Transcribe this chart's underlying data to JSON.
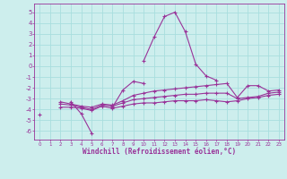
{
  "xlabel": "Windchill (Refroidissement éolien,°C)",
  "background_color": "#cdeeed",
  "grid_color": "#a8dede",
  "line_color": "#993399",
  "x_ticks": [
    0,
    1,
    2,
    3,
    4,
    5,
    6,
    7,
    8,
    9,
    10,
    11,
    12,
    13,
    14,
    15,
    16,
    17,
    18,
    19,
    20,
    21,
    22,
    23
  ],
  "y_ticks": [
    -6,
    -5,
    -4,
    -3,
    -2,
    -1,
    0,
    1,
    2,
    3,
    4,
    5
  ],
  "ylim": [
    -6.8,
    5.8
  ],
  "xlim": [
    -0.5,
    23.5
  ],
  "series": [
    [
      null,
      null,
      null,
      null,
      null,
      null,
      null,
      null,
      null,
      null,
      0.5,
      2.7,
      4.6,
      5.0,
      3.2,
      0.2,
      -0.9,
      -1.3,
      null,
      null,
      null,
      null,
      null,
      null
    ],
    [
      -4.5,
      null,
      null,
      -3.3,
      -4.4,
      -6.2,
      null,
      -3.8,
      -2.2,
      -1.4,
      -1.6,
      null,
      null,
      null,
      null,
      null,
      null,
      null,
      null,
      null,
      null,
      null,
      null,
      null
    ],
    [
      null,
      null,
      -3.3,
      -3.5,
      -3.7,
      -3.8,
      -3.5,
      -3.6,
      -3.2,
      -2.7,
      -2.5,
      -2.3,
      -2.2,
      -2.1,
      -2.0,
      -1.9,
      -1.8,
      -1.7,
      -1.6,
      -2.9,
      -1.8,
      -1.8,
      -2.3,
      -2.2
    ],
    [
      null,
      null,
      -3.5,
      -3.6,
      -3.8,
      -4.0,
      -3.6,
      -3.7,
      -3.4,
      -3.1,
      -3.0,
      -2.9,
      -2.8,
      -2.7,
      -2.6,
      -2.6,
      -2.5,
      -2.5,
      -2.5,
      -3.0,
      -2.9,
      -2.8,
      -2.5,
      -2.4
    ],
    [
      null,
      null,
      -3.8,
      -3.8,
      -3.9,
      -4.1,
      -3.7,
      -3.9,
      -3.7,
      -3.5,
      -3.4,
      -3.4,
      -3.3,
      -3.2,
      -3.2,
      -3.2,
      -3.1,
      -3.2,
      -3.3,
      -3.2,
      -3.0,
      -2.9,
      -2.7,
      -2.6
    ]
  ]
}
